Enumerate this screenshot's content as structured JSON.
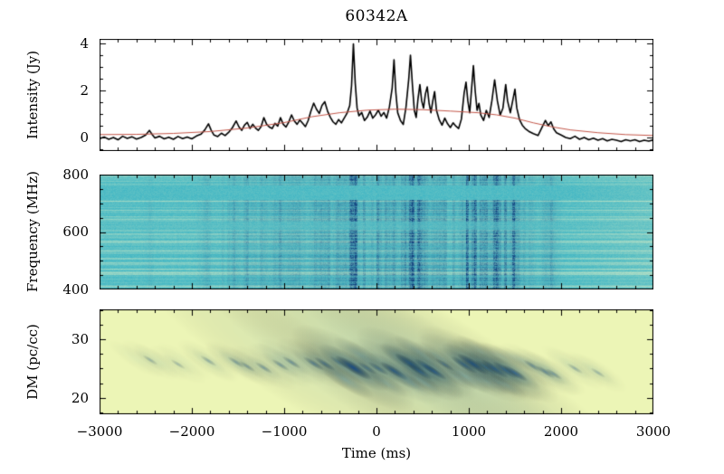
{
  "title": "60342A",
  "axes": {
    "x": {
      "label": "Time (ms)",
      "ticks": [
        "−3000",
        "−2000",
        "−1000",
        "0",
        "1000",
        "2000",
        "3000"
      ]
    },
    "panel1_y": {
      "label": "Intensity (Jy)",
      "ticks": [
        "4",
        "2",
        "0"
      ]
    },
    "panel2_y": {
      "label": "Frequency (MHz)",
      "ticks": [
        "800",
        "600",
        "400"
      ]
    },
    "panel3_y": {
      "label": "DM (pc/cc)",
      "ticks": [
        "30",
        "20"
      ]
    }
  },
  "chart_data": [
    {
      "type": "line",
      "panel": "intensity-profile",
      "ylabel": "Intensity (Jy)",
      "xlabel": "Time (ms)",
      "xlim": [
        -3000,
        3000
      ],
      "ylim": [
        -0.58,
        4.19
      ],
      "x_major_ticks": [
        -3000,
        -2000,
        -1000,
        0,
        1000,
        2000,
        3000
      ],
      "x_minor_step": 200,
      "y_major_ticks": [
        0,
        2,
        4
      ],
      "y_minor_step": 0.5,
      "series": [
        {
          "name": "dedispersed intensity",
          "color": "#000000",
          "width": 1.6,
          "points": [
            [
              -3000,
              -0.05
            ],
            [
              -2950,
              0.02
            ],
            [
              -2900,
              -0.08
            ],
            [
              -2850,
              0
            ],
            [
              -2800,
              -0.1
            ],
            [
              -2750,
              0.05
            ],
            [
              -2700,
              -0.04
            ],
            [
              -2650,
              0.03
            ],
            [
              -2600,
              -0.07
            ],
            [
              -2550,
              0
            ],
            [
              -2500,
              0.1
            ],
            [
              -2460,
              0.3
            ],
            [
              -2430,
              0.12
            ],
            [
              -2400,
              -0.02
            ],
            [
              -2350,
              0.05
            ],
            [
              -2300,
              -0.06
            ],
            [
              -2250,
              0.01
            ],
            [
              -2200,
              -0.08
            ],
            [
              -2150,
              0.04
            ],
            [
              -2100,
              -0.05
            ],
            [
              -2050,
              0.02
            ],
            [
              -2000,
              -0.06
            ],
            [
              -1950,
              0.06
            ],
            [
              -1900,
              0.14
            ],
            [
              -1860,
              0.32
            ],
            [
              -1820,
              0.58
            ],
            [
              -1790,
              0.3
            ],
            [
              -1760,
              0.1
            ],
            [
              -1720,
              0.04
            ],
            [
              -1680,
              0.18
            ],
            [
              -1640,
              0.08
            ],
            [
              -1600,
              0.22
            ],
            [
              -1560,
              0.42
            ],
            [
              -1520,
              0.7
            ],
            [
              -1490,
              0.45
            ],
            [
              -1460,
              0.3
            ],
            [
              -1430,
              0.52
            ],
            [
              -1400,
              0.64
            ],
            [
              -1370,
              0.38
            ],
            [
              -1340,
              0.56
            ],
            [
              -1310,
              0.4
            ],
            [
              -1280,
              0.3
            ],
            [
              -1250,
              0.46
            ],
            [
              -1220,
              0.84
            ],
            [
              -1190,
              0.56
            ],
            [
              -1160,
              0.44
            ],
            [
              -1130,
              0.38
            ],
            [
              -1100,
              0.6
            ],
            [
              -1070,
              0.48
            ],
            [
              -1040,
              0.84
            ],
            [
              -1010,
              0.56
            ],
            [
              -980,
              0.44
            ],
            [
              -950,
              0.66
            ],
            [
              -920,
              0.96
            ],
            [
              -890,
              0.7
            ],
            [
              -860,
              0.56
            ],
            [
              -830,
              0.74
            ],
            [
              -800,
              0.6
            ],
            [
              -770,
              0.46
            ],
            [
              -740,
              0.72
            ],
            [
              -710,
              1.12
            ],
            [
              -680,
              1.46
            ],
            [
              -650,
              1.2
            ],
            [
              -620,
              1.02
            ],
            [
              -590,
              1.36
            ],
            [
              -560,
              1.52
            ],
            [
              -530,
              1.12
            ],
            [
              -500,
              0.86
            ],
            [
              -470,
              0.66
            ],
            [
              -440,
              0.56
            ],
            [
              -410,
              0.76
            ],
            [
              -380,
              0.62
            ],
            [
              -350,
              0.82
            ],
            [
              -320,
              1.02
            ],
            [
              -290,
              1.35
            ],
            [
              -270,
              2.2
            ],
            [
              -250,
              3.98
            ],
            [
              -230,
              2.3
            ],
            [
              -210,
              1.25
            ],
            [
              -190,
              0.92
            ],
            [
              -160,
              1.06
            ],
            [
              -130,
              0.72
            ],
            [
              -100,
              0.86
            ],
            [
              -70,
              1.12
            ],
            [
              -40,
              0.82
            ],
            [
              -10,
              0.96
            ],
            [
              20,
              1.16
            ],
            [
              50,
              0.9
            ],
            [
              80,
              1.06
            ],
            [
              110,
              0.82
            ],
            [
              140,
              1.3
            ],
            [
              170,
              2.1
            ],
            [
              190,
              3.3
            ],
            [
              210,
              1.9
            ],
            [
              230,
              1.05
            ],
            [
              260,
              0.72
            ],
            [
              290,
              0.55
            ],
            [
              320,
              1.3
            ],
            [
              350,
              2.5
            ],
            [
              368,
              3.5
            ],
            [
              390,
              2.2
            ],
            [
              410,
              1.15
            ],
            [
              430,
              0.85
            ],
            [
              450,
              1.65
            ],
            [
              470,
              2.25
            ],
            [
              490,
              1.55
            ],
            [
              510,
              1.25
            ],
            [
              530,
              1.85
            ],
            [
              550,
              2.15
            ],
            [
              570,
              1.45
            ],
            [
              590,
              1.05
            ],
            [
              610,
              1.55
            ],
            [
              630,
              1.95
            ],
            [
              650,
              1.15
            ],
            [
              680,
              0.75
            ],
            [
              710,
              0.52
            ],
            [
              740,
              0.82
            ],
            [
              770,
              0.58
            ],
            [
              800,
              0.42
            ],
            [
              830,
              0.62
            ],
            [
              860,
              0.48
            ],
            [
              890,
              0.38
            ],
            [
              920,
              0.78
            ],
            [
              950,
              1.9
            ],
            [
              970,
              2.35
            ],
            [
              990,
              1.55
            ],
            [
              1010,
              1.05
            ],
            [
              1030,
              2.05
            ],
            [
              1050,
              3.05
            ],
            [
              1070,
              1.95
            ],
            [
              1090,
              1.15
            ],
            [
              1110,
              1.45
            ],
            [
              1130,
              0.95
            ],
            [
              1160,
              0.72
            ],
            [
              1190,
              1.15
            ],
            [
              1220,
              0.85
            ],
            [
              1250,
              1.55
            ],
            [
              1280,
              2.45
            ],
            [
              1310,
              1.55
            ],
            [
              1340,
              0.95
            ],
            [
              1370,
              1.25
            ],
            [
              1400,
              2.25
            ],
            [
              1420,
              1.55
            ],
            [
              1450,
              1.05
            ],
            [
              1480,
              1.65
            ],
            [
              1500,
              2.05
            ],
            [
              1520,
              1.25
            ],
            [
              1550,
              0.75
            ],
            [
              1580,
              0.52
            ],
            [
              1610,
              0.38
            ],
            [
              1650,
              0.26
            ],
            [
              1700,
              0.16
            ],
            [
              1750,
              0.08
            ],
            [
              1800,
              0.48
            ],
            [
              1830,
              0.72
            ],
            [
              1860,
              0.5
            ],
            [
              1890,
              0.66
            ],
            [
              1920,
              0.36
            ],
            [
              1950,
              0.2
            ],
            [
              2000,
              0.1
            ],
            [
              2050,
              0
            ],
            [
              2100,
              -0.05
            ],
            [
              2150,
              0.05
            ],
            [
              2200,
              -0.08
            ],
            [
              2250,
              0
            ],
            [
              2300,
              -0.1
            ],
            [
              2350,
              -0.03
            ],
            [
              2400,
              -0.12
            ],
            [
              2450,
              -0.05
            ],
            [
              2500,
              -0.15
            ],
            [
              2550,
              -0.08
            ],
            [
              2600,
              -0.12
            ],
            [
              2650,
              -0.18
            ],
            [
              2700,
              -0.1
            ],
            [
              2750,
              -0.15
            ],
            [
              2800,
              -0.1
            ],
            [
              2850,
              -0.18
            ],
            [
              2900,
              -0.12
            ],
            [
              2950,
              -0.16
            ],
            [
              3000,
              -0.1
            ]
          ]
        },
        {
          "name": "smoothed envelope",
          "color": "#c4574a",
          "width": 1,
          "points": [
            [
              -3000,
              0.12
            ],
            [
              -2600,
              0.13
            ],
            [
              -2200,
              0.17
            ],
            [
              -1800,
              0.25
            ],
            [
              -1400,
              0.4
            ],
            [
              -1000,
              0.63
            ],
            [
              -700,
              0.88
            ],
            [
              -400,
              1.05
            ],
            [
              -100,
              1.16
            ],
            [
              200,
              1.2
            ],
            [
              500,
              1.18
            ],
            [
              800,
              1.12
            ],
            [
              1100,
              1.05
            ],
            [
              1300,
              0.96
            ],
            [
              1500,
              0.82
            ],
            [
              1700,
              0.62
            ],
            [
              1900,
              0.45
            ],
            [
              2100,
              0.32
            ],
            [
              2400,
              0.2
            ],
            [
              2700,
              0.12
            ],
            [
              3000,
              0.08
            ]
          ]
        }
      ]
    },
    {
      "type": "heatmap",
      "panel": "dynamic-spectrum",
      "ylabel": "Frequency (MHz)",
      "xlim": [
        -3000,
        3000
      ],
      "ylim": [
        400,
        800
      ],
      "x_major_ticks": [
        -3000,
        -2000,
        -1000,
        0,
        1000,
        2000,
        3000
      ],
      "x_minor_step": 200,
      "y_major_ticks": [
        400,
        600,
        800
      ],
      "y_minor_step": 50,
      "colors": {
        "base": "#40b6c4",
        "pale": "#d2eac6",
        "dark": "#103c7c"
      },
      "masked_bands_mhz": [
        [
          712,
          763
        ],
        [
          607,
          636
        ]
      ]
    },
    {
      "type": "heatmap",
      "panel": "dm-time",
      "ylabel": "DM (pc/cc)",
      "xlim": [
        -3000,
        3000
      ],
      "ylim": [
        17.2,
        35.1
      ],
      "x_major_ticks": [
        -3000,
        -2000,
        -1000,
        0,
        1000,
        2000,
        3000
      ],
      "x_minor_step": 200,
      "y_major_ticks": [
        20,
        30
      ],
      "y_minor_step": 2.5,
      "colors": {
        "background": "#ecf5b6",
        "diffuse": "#6eb9be",
        "core": "#14467f"
      },
      "dm_center": 25,
      "streaks": [
        [
          -2450,
          0.07
        ],
        [
          -2150,
          0.05
        ],
        [
          -1820,
          0.12
        ],
        [
          -1520,
          0.15
        ],
        [
          -1400,
          0.12
        ],
        [
          -1220,
          0.18
        ],
        [
          -1040,
          0.18
        ],
        [
          -920,
          0.22
        ],
        [
          -680,
          0.32
        ],
        [
          -560,
          0.32
        ],
        [
          -410,
          0.2
        ],
        [
          -250,
          1
        ],
        [
          -100,
          0.25
        ],
        [
          20,
          0.3
        ],
        [
          190,
          0.62
        ],
        [
          368,
          0.78
        ],
        [
          470,
          0.5
        ],
        [
          550,
          0.52
        ],
        [
          630,
          0.45
        ],
        [
          740,
          0.25
        ],
        [
          950,
          0.55
        ],
        [
          1050,
          0.82
        ],
        [
          1190,
          0.4
        ],
        [
          1280,
          0.62
        ],
        [
          1400,
          0.55
        ],
        [
          1500,
          0.5
        ],
        [
          1690,
          0.2
        ],
        [
          1830,
          0.25
        ],
        [
          1920,
          0.15
        ],
        [
          2150,
          0.1
        ],
        [
          2400,
          0.06
        ]
      ]
    }
  ]
}
